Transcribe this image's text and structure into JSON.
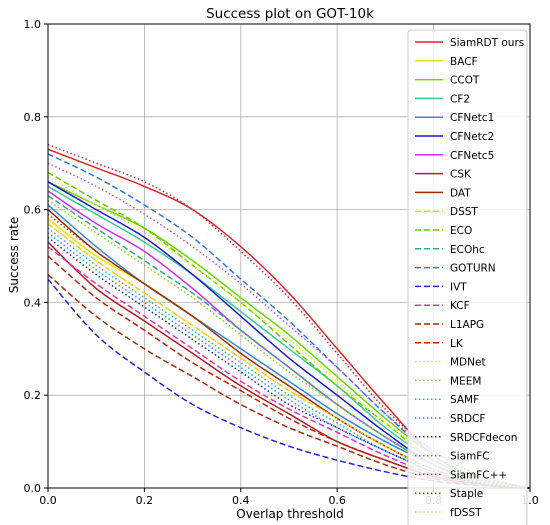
{
  "chart_data": {
    "type": "line",
    "title": "Success plot on GOT-10k",
    "xlabel": "Overlap threshold",
    "ylabel": "Success rate",
    "xlim": [
      0,
      1
    ],
    "ylim": [
      0,
      1
    ],
    "xticks": [
      "0.0",
      "0.2",
      "0.4",
      "0.6",
      "0.8",
      "1.0"
    ],
    "yticks": [
      "0.0",
      "0.2",
      "0.4",
      "0.6",
      "0.8",
      "1.0"
    ],
    "grid": true,
    "legend_position": "top-right",
    "x": [
      0.0,
      0.1,
      0.2,
      0.3,
      0.4,
      0.5,
      0.6,
      0.7,
      0.8,
      0.9,
      1.0
    ],
    "series": [
      {
        "name": "SiamRDT ours",
        "color": "#d62728",
        "dash": "solid",
        "values": [
          0.73,
          0.69,
          0.65,
          0.6,
          0.52,
          0.42,
          0.3,
          0.18,
          0.07,
          0.02,
          0.0
        ]
      },
      {
        "name": "BACF",
        "color": "#e6e600",
        "dash": "solid",
        "values": [
          0.58,
          0.5,
          0.44,
          0.37,
          0.3,
          0.23,
          0.16,
          0.1,
          0.05,
          0.015,
          0.0
        ]
      },
      {
        "name": "CCOT",
        "color": "#66dd00",
        "dash": "solid",
        "values": [
          0.66,
          0.61,
          0.56,
          0.49,
          0.41,
          0.33,
          0.24,
          0.15,
          0.07,
          0.02,
          0.0
        ]
      },
      {
        "name": "CF2",
        "color": "#33cc99",
        "dash": "solid",
        "values": [
          0.65,
          0.59,
          0.53,
          0.46,
          0.38,
          0.3,
          0.22,
          0.13,
          0.06,
          0.02,
          0.0
        ]
      },
      {
        "name": "CFNetc1",
        "color": "#3388ff",
        "dash": "solid",
        "values": [
          0.61,
          0.52,
          0.44,
          0.37,
          0.3,
          0.23,
          0.16,
          0.1,
          0.05,
          0.015,
          0.0
        ]
      },
      {
        "name": "CFNetc2",
        "color": "#1a1acc",
        "dash": "solid",
        "values": [
          0.66,
          0.6,
          0.54,
          0.46,
          0.37,
          0.28,
          0.2,
          0.12,
          0.05,
          0.015,
          0.0
        ]
      },
      {
        "name": "CFNetc5",
        "color": "#cc33ee",
        "dash": "solid",
        "values": [
          0.64,
          0.57,
          0.51,
          0.43,
          0.34,
          0.26,
          0.18,
          0.11,
          0.05,
          0.015,
          0.0
        ]
      },
      {
        "name": "CSK",
        "color": "#b22222",
        "dash": "solid",
        "values": [
          0.53,
          0.43,
          0.36,
          0.29,
          0.22,
          0.16,
          0.1,
          0.06,
          0.025,
          0.008,
          0.0
        ]
      },
      {
        "name": "DAT",
        "color": "#a02c00",
        "dash": "solid",
        "values": [
          0.6,
          0.51,
          0.44,
          0.37,
          0.29,
          0.22,
          0.15,
          0.09,
          0.04,
          0.012,
          0.0
        ]
      },
      {
        "name": "DSST",
        "color": "#ffcc00",
        "dash": "dash",
        "values": [
          0.57,
          0.49,
          0.42,
          0.35,
          0.28,
          0.21,
          0.15,
          0.09,
          0.04,
          0.012,
          0.0
        ]
      },
      {
        "name": "ECO",
        "color": "#66cc00",
        "dash": "dash",
        "values": [
          0.68,
          0.62,
          0.56,
          0.48,
          0.4,
          0.31,
          0.22,
          0.14,
          0.06,
          0.02,
          0.0
        ]
      },
      {
        "name": "ECOhc",
        "color": "#33aa88",
        "dash": "dash",
        "values": [
          0.63,
          0.56,
          0.49,
          0.42,
          0.34,
          0.26,
          0.18,
          0.11,
          0.05,
          0.015,
          0.0
        ]
      },
      {
        "name": "GOTURN",
        "color": "#3377dd",
        "dash": "dash",
        "values": [
          0.72,
          0.67,
          0.61,
          0.54,
          0.45,
          0.36,
          0.26,
          0.16,
          0.07,
          0.02,
          0.0
        ]
      },
      {
        "name": "IVT",
        "color": "#2222dd",
        "dash": "dash",
        "values": [
          0.45,
          0.33,
          0.25,
          0.18,
          0.13,
          0.09,
          0.06,
          0.035,
          0.015,
          0.005,
          0.0
        ]
      },
      {
        "name": "KCF",
        "color": "#dd33cc",
        "dash": "dash",
        "values": [
          0.52,
          0.44,
          0.37,
          0.3,
          0.23,
          0.17,
          0.12,
          0.07,
          0.03,
          0.01,
          0.0
        ]
      },
      {
        "name": "L1APG",
        "color": "#a02c10",
        "dash": "dash",
        "values": [
          0.46,
          0.37,
          0.3,
          0.24,
          0.18,
          0.13,
          0.09,
          0.05,
          0.02,
          0.006,
          0.0
        ]
      },
      {
        "name": "LK",
        "color": "#bb2211",
        "dash": "dash",
        "values": [
          0.5,
          0.41,
          0.34,
          0.27,
          0.21,
          0.15,
          0.1,
          0.06,
          0.025,
          0.008,
          0.0
        ]
      },
      {
        "name": "MDNet",
        "color": "#ffdd22",
        "dash": "dot",
        "values": [
          0.67,
          0.61,
          0.55,
          0.48,
          0.4,
          0.32,
          0.23,
          0.14,
          0.07,
          0.02,
          0.0
        ]
      },
      {
        "name": "MEEM",
        "color": "#88cc22",
        "dash": "dot",
        "values": [
          0.62,
          0.55,
          0.48,
          0.41,
          0.33,
          0.25,
          0.18,
          0.11,
          0.05,
          0.015,
          0.0
        ]
      },
      {
        "name": "SAMF",
        "color": "#22bbaa",
        "dash": "dot",
        "values": [
          0.56,
          0.48,
          0.41,
          0.34,
          0.27,
          0.2,
          0.14,
          0.08,
          0.04,
          0.012,
          0.0
        ]
      },
      {
        "name": "SRDCF",
        "color": "#3388ee",
        "dash": "dot",
        "values": [
          0.55,
          0.47,
          0.4,
          0.33,
          0.26,
          0.19,
          0.13,
          0.08,
          0.035,
          0.01,
          0.0
        ]
      },
      {
        "name": "SRDCFdecon",
        "color": "#222299",
        "dash": "dot",
        "values": [
          0.54,
          0.46,
          0.39,
          0.32,
          0.25,
          0.18,
          0.13,
          0.08,
          0.035,
          0.01,
          0.0
        ]
      },
      {
        "name": "SiamFC",
        "color": "#aa55ee",
        "dash": "dot",
        "values": [
          0.7,
          0.65,
          0.59,
          0.52,
          0.44,
          0.35,
          0.26,
          0.16,
          0.08,
          0.025,
          0.0
        ]
      },
      {
        "name": "SiamFC++",
        "color": "#b03060",
        "dash": "dot",
        "values": [
          0.74,
          0.7,
          0.66,
          0.6,
          0.51,
          0.41,
          0.29,
          0.17,
          0.08,
          0.025,
          0.0
        ]
      },
      {
        "name": "Staple",
        "color": "#aa4400",
        "dash": "dot",
        "values": [
          0.59,
          0.51,
          0.44,
          0.37,
          0.29,
          0.22,
          0.15,
          0.09,
          0.04,
          0.012,
          0.0
        ]
      },
      {
        "name": "fDSST",
        "color": "#ffcc33",
        "dash": "dot",
        "values": [
          0.57,
          0.49,
          0.42,
          0.35,
          0.28,
          0.21,
          0.15,
          0.09,
          0.04,
          0.012,
          0.0
        ]
      }
    ]
  }
}
